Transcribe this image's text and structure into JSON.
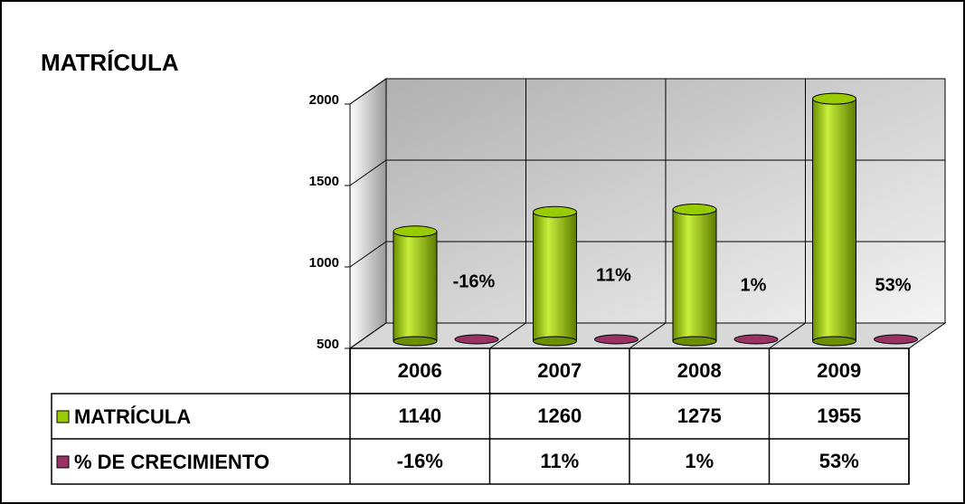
{
  "chart_data": {
    "type": "bar3d",
    "title": "MATRÍCULA",
    "categories": [
      "2006",
      "2007",
      "2008",
      "2009"
    ],
    "series": [
      {
        "name": "MATRÍCULA",
        "color": "#99cc00",
        "values": [
          1140,
          1260,
          1275,
          1955
        ]
      },
      {
        "name": "% DE CRECIMIENTO",
        "color": "#993366",
        "values": [
          -16,
          11,
          1,
          53
        ],
        "value_labels": [
          "-16%",
          "11%",
          "1%",
          "53%"
        ]
      }
    ],
    "ylim": [
      500,
      2000
    ],
    "yticks": [
      500,
      1000,
      1500,
      2000
    ],
    "grid": true
  }
}
